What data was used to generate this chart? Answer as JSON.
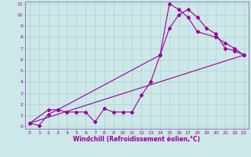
{
  "background_color": "#cde8e8",
  "grid_color": "#b0d0d0",
  "line_color": "#990099",
  "spine_color": "#7777aa",
  "xlim": [
    -0.5,
    23.5
  ],
  "ylim": [
    -0.2,
    11.2
  ],
  "xticks": [
    0,
    1,
    2,
    3,
    4,
    5,
    6,
    7,
    8,
    9,
    10,
    11,
    12,
    13,
    14,
    15,
    16,
    17,
    18,
    19,
    20,
    21,
    22,
    23
  ],
  "yticks": [
    0,
    1,
    2,
    3,
    4,
    5,
    6,
    7,
    8,
    9,
    10,
    11
  ],
  "xlabel": "Windchill (Refroidissement éolien,°C)",
  "series1_x": [
    0,
    1,
    2,
    3,
    4,
    5,
    6,
    7,
    8,
    9,
    10,
    11,
    12,
    13,
    14,
    15,
    16,
    17,
    18,
    19,
    20,
    21,
    22,
    23
  ],
  "series1_y": [
    0.3,
    0.1,
    1.1,
    1.5,
    1.3,
    1.3,
    1.3,
    0.4,
    1.6,
    1.3,
    1.3,
    1.3,
    2.8,
    4.0,
    6.4,
    8.8,
    10.0,
    10.5,
    9.8,
    8.8,
    8.3,
    7.0,
    6.8,
    6.4
  ],
  "series2_x": [
    0,
    2,
    3,
    14,
    15,
    16,
    17,
    18,
    20,
    21,
    22,
    23
  ],
  "series2_y": [
    0.3,
    1.5,
    1.5,
    6.4,
    11.0,
    10.5,
    9.8,
    8.5,
    8.0,
    7.5,
    7.0,
    6.4
  ],
  "series3_x": [
    0,
    23
  ],
  "series3_y": [
    0.3,
    6.4
  ],
  "markersize": 2.0,
  "linewidth": 0.8,
  "tick_fontsize": 4.5,
  "xlabel_fontsize": 5.5
}
